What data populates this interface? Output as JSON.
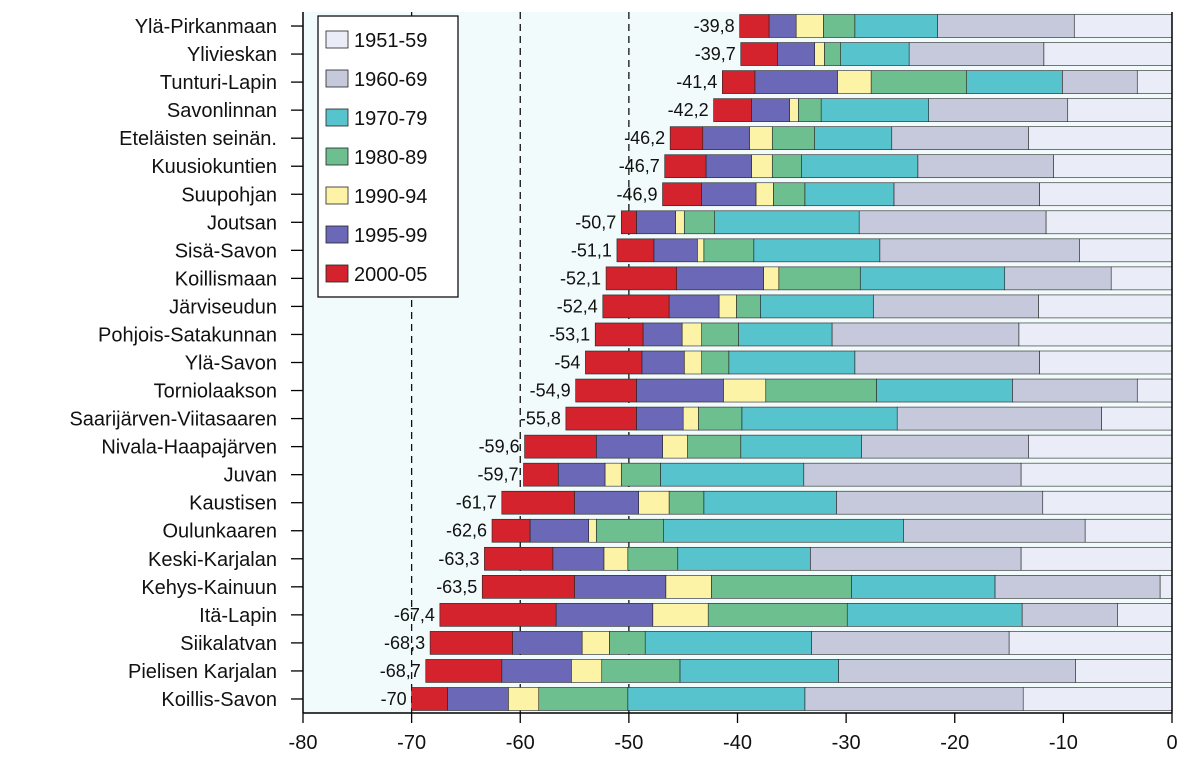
{
  "chart_data": {
    "type": "bar",
    "orientation": "horizontal",
    "stacked": true,
    "title": "",
    "xlabel": "",
    "ylabel": "",
    "xlim": [
      -80,
      0
    ],
    "x_ticks": [
      -80,
      -70,
      -60,
      -50,
      -40,
      -30,
      -20,
      -10,
      0
    ],
    "reference_lines": [
      -70,
      -60,
      -50
    ],
    "legend_position": "top-left",
    "categories": [
      "Ylä-Pirkanmaan",
      "Ylivieskan",
      "Tunturi-Lapin",
      "Savonlinnan",
      "Eteläisten seinän.",
      "Kuusiokuntien",
      "Suupohjan",
      "Joutsan",
      "Sisä-Savon",
      "Koillismaan",
      "Järviseudun",
      "Pohjois-Satakunnan",
      "Ylä-Savon",
      "Torniolaakson",
      "Saarijärven-Viitasaaren",
      "Nivala-Haapajärven",
      "Juvan",
      "Kaustisen",
      "Oulunkaaren",
      "Keski-Karjalan",
      "Kehys-Kainuun",
      "Itä-Lapin",
      "Siikalatvan",
      "Pielisen Karjalan",
      "Koillis-Savon"
    ],
    "totals": [
      "-39,8",
      "-39,7",
      "-41,4",
      "-42,2",
      "-46,2",
      "-46,7",
      "-46,9",
      "-50,7",
      "-51,1",
      "-52,1",
      "-52,4",
      "-53,1",
      "-54",
      "-54,9",
      "-55,8",
      "-59,6",
      "-59,7",
      "-61,7",
      "-62,6",
      "-63,3",
      "-63,5",
      "-67,4",
      "-68,3",
      "-68,7",
      "-70"
    ],
    "series": [
      {
        "name": "1951-59",
        "color": "#eaedf7",
        "values": [
          -9.0,
          -11.8,
          -3.2,
          -9.6,
          -13.2,
          -10.9,
          -12.2,
          -11.6,
          -8.5,
          -5.6,
          -12.3,
          -14.1,
          -12.2,
          -3.2,
          -6.5,
          -13.2,
          -13.9,
          -11.9,
          -8.0,
          -13.9,
          -1.1,
          -5.0,
          -15.0,
          -8.9,
          -13.7
        ]
      },
      {
        "name": "1960-69",
        "color": "#c5c9db",
        "values": [
          -12.6,
          -12.4,
          -6.9,
          -12.8,
          -12.6,
          -12.5,
          -13.4,
          -17.2,
          -18.4,
          -9.8,
          -15.2,
          -17.2,
          -17.0,
          -11.5,
          -18.8,
          -15.4,
          -20.0,
          -19.0,
          -16.7,
          -19.4,
          -15.2,
          -8.8,
          -18.2,
          -21.8,
          -20.1
        ]
      },
      {
        "name": "1970-79",
        "color": "#57c3cd",
        "values": [
          -7.6,
          -6.3,
          -8.8,
          -9.9,
          -7.1,
          -10.7,
          -8.2,
          -13.3,
          -11.6,
          -13.3,
          -10.4,
          -8.6,
          -11.6,
          -12.5,
          -14.3,
          -11.1,
          -13.2,
          -12.2,
          -22.1,
          -12.2,
          -13.2,
          -16.1,
          -15.3,
          -14.6,
          -16.3
        ]
      },
      {
        "name": "1980-89",
        "color": "#6dbf8f",
        "values": [
          -2.9,
          -1.5,
          -8.8,
          -2.1,
          -3.9,
          -2.7,
          -2.9,
          -2.8,
          -4.6,
          -7.5,
          -2.2,
          -3.4,
          -2.5,
          -10.2,
          -4.0,
          -4.9,
          -3.6,
          -3.2,
          -6.2,
          -4.6,
          -12.9,
          -12.8,
          -3.3,
          -7.2,
          -8.2
        ]
      },
      {
        "name": "1990-94",
        "color": "#fdf3a6",
        "values": [
          -2.5,
          -0.9,
          -3.1,
          -0.8,
          -2.1,
          -1.9,
          -1.6,
          -0.8,
          -0.6,
          -1.4,
          -1.6,
          -1.8,
          -1.6,
          -3.9,
          -1.4,
          -2.3,
          -1.5,
          -2.8,
          -0.7,
          -2.2,
          -4.2,
          -5.1,
          -2.5,
          -2.8,
          -2.8
        ]
      },
      {
        "name": "1995-99",
        "color": "#6b68b7",
        "values": [
          -2.5,
          -3.4,
          -7.6,
          -3.5,
          -4.3,
          -4.2,
          -5.0,
          -3.6,
          -4.0,
          -8.0,
          -4.6,
          -3.6,
          -3.9,
          -8.0,
          -4.3,
          -6.1,
          -4.3,
          -5.9,
          -5.4,
          -4.7,
          -8.4,
          -8.9,
          -6.4,
          -6.4,
          -5.6
        ]
      },
      {
        "name": "2000-05",
        "color": "#d4232d",
        "values": [
          -2.7,
          -3.4,
          -3.0,
          -3.5,
          -3.0,
          -3.8,
          -3.6,
          -1.4,
          -3.4,
          -6.5,
          -6.1,
          -4.4,
          -5.2,
          -5.6,
          -6.5,
          -6.6,
          -3.2,
          -6.7,
          -3.5,
          -6.3,
          -8.5,
          -10.7,
          -7.6,
          -7.0,
          -3.3
        ]
      }
    ]
  }
}
